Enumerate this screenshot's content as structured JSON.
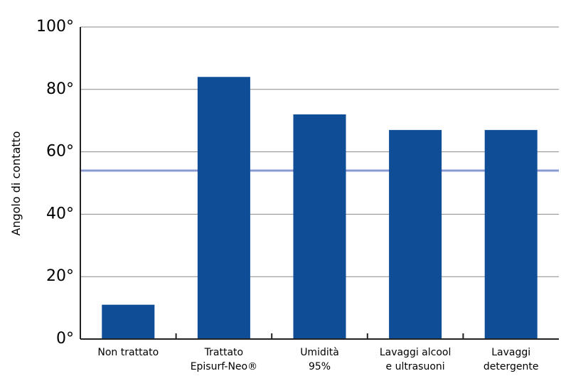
{
  "chart_data": {
    "type": "bar",
    "title": "",
    "xlabel": "",
    "ylabel": "Angolo di contatto",
    "ylim": [
      0,
      100
    ],
    "yticks": [
      0,
      20,
      40,
      60,
      80,
      100
    ],
    "ytick_labels": [
      "0°",
      "20°",
      "40°",
      "60°",
      "80°",
      "100°"
    ],
    "categories": [
      [
        "Non trattato"
      ],
      [
        "Trattato",
        "Episurf-Neo®"
      ],
      [
        "Umidità",
        "95%"
      ],
      [
        "Lavaggi alcool",
        "e ultrasuoni"
      ],
      [
        "Lavaggi",
        "detergente"
      ]
    ],
    "values": [
      11,
      84,
      72,
      67,
      67
    ],
    "reference_line": 54,
    "grid": true,
    "colors": {
      "bar": "#0f4e97",
      "reference_line": "#8b9ad6",
      "grid": "#8a8a8a",
      "axis": "#222222"
    }
  }
}
